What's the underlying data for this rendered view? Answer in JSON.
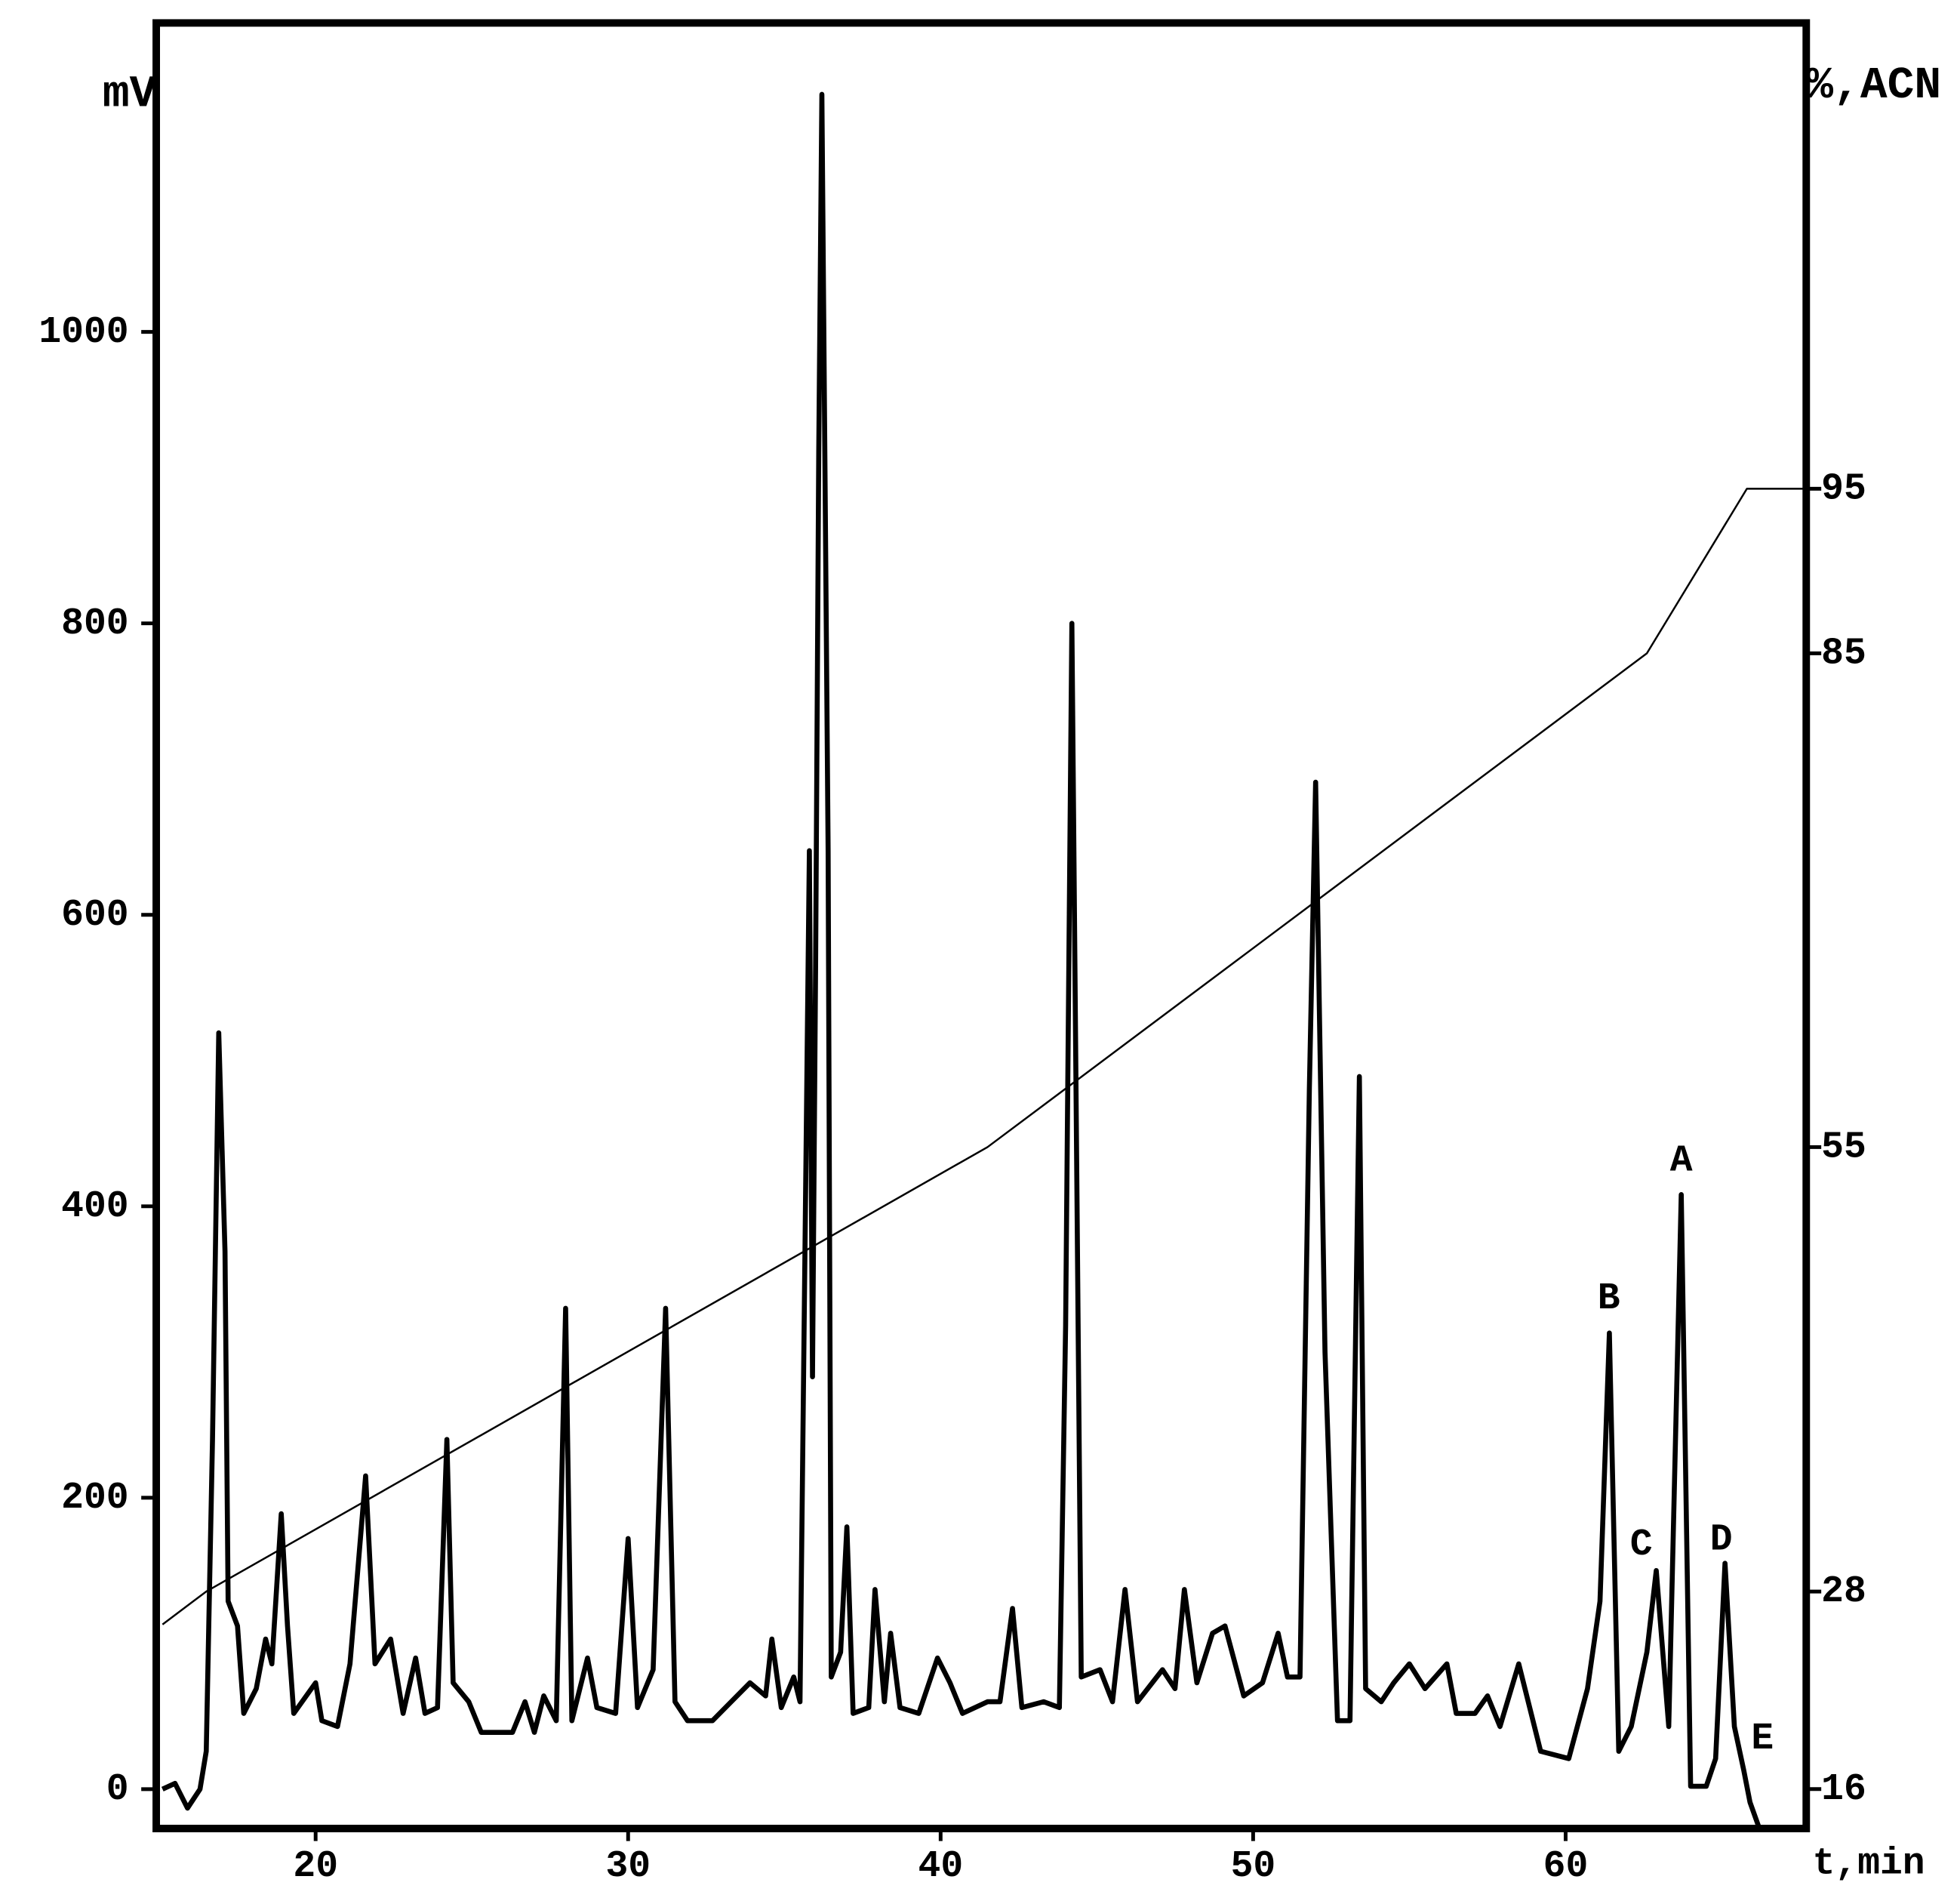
{
  "chart_data": {
    "type": "line",
    "y_label": "mV",
    "y2_label": "%,ACN",
    "x_label": "t,min",
    "xlim": [
      14.9,
      67.7
    ],
    "ylim": [
      -27,
      1212
    ],
    "y2lim": [
      13.6,
      123.3
    ],
    "xticks": [
      20,
      30,
      40,
      50,
      60
    ],
    "yticks": [
      0,
      200,
      400,
      600,
      800,
      1000
    ],
    "y2ticks": [
      16,
      28,
      55,
      85,
      95
    ],
    "annotations": [
      "A",
      "B",
      "C",
      "D",
      "E"
    ],
    "series": [
      {
        "color": "#000000",
        "axis": "y",
        "x": [
          15.1,
          15.5,
          15.9,
          16.3,
          16.5,
          16.7,
          16.9,
          17.1,
          17.2,
          17.5,
          17.7,
          18.1,
          18.4,
          18.6,
          18.9,
          19.1,
          19.3,
          19.7,
          20.0,
          20.2,
          20.7,
          21.1,
          21.6,
          21.9,
          22.4,
          22.8,
          23.2,
          23.5,
          23.9,
          24.2,
          24.4,
          24.9,
          25.3,
          26.3,
          26.7,
          27.0,
          27.3,
          27.7,
          28.0,
          28.2,
          28.7,
          29.0,
          29.6,
          30.0,
          30.3,
          30.8,
          31.2,
          31.5,
          31.9,
          32.7,
          33.3,
          33.9,
          34.4,
          34.6,
          34.9,
          35.3,
          35.5,
          35.8,
          35.9,
          36.0,
          36.1,
          36.2,
          36.4,
          36.5,
          36.8,
          37.0,
          37.2,
          37.7,
          37.9,
          38.2,
          38.4,
          38.7,
          39.3,
          39.9,
          40.3,
          40.7,
          41.5,
          41.9,
          42.3,
          42.6,
          43.3,
          43.8,
          44.0,
          44.2,
          44.5,
          45.1,
          45.5,
          45.9,
          46.3,
          47.1,
          47.5,
          47.8,
          48.2,
          48.7,
          49.1,
          49.7,
          50.3,
          50.8,
          51.1,
          51.5,
          51.8,
          52.0,
          52.3,
          52.7,
          53.1,
          53.4,
          53.6,
          54.1,
          54.5,
          55.0,
          55.5,
          56.2,
          56.5,
          57.1,
          57.5,
          57.9,
          58.5,
          59.2,
          60.1,
          60.7,
          61.1,
          61.4,
          61.7,
          62.1,
          62.6,
          62.9,
          63.3,
          63.7,
          64.0,
          64.5,
          64.8,
          65.1,
          65.4,
          65.7,
          65.9,
          66.2
        ],
        "values": [
          0,
          4,
          -13,
          0,
          26,
          240,
          519,
          369,
          129,
          112,
          52,
          69,
          103,
          86,
          189,
          112,
          52,
          64,
          73,
          47,
          43,
          86,
          215,
          86,
          103,
          52,
          90,
          52,
          56,
          240,
          73,
          60,
          39,
          39,
          60,
          39,
          64,
          47,
          330,
          47,
          90,
          56,
          52,
          172,
          56,
          82,
          330,
          60,
          47,
          47,
          60,
          73,
          64,
          103,
          56,
          77,
          60,
          644,
          283,
          567,
          918,
          1163,
          644,
          77,
          94,
          180,
          52,
          56,
          137,
          60,
          107,
          56,
          52,
          90,
          73,
          52,
          60,
          60,
          124,
          56,
          60,
          56,
          318,
          800,
          77,
          82,
          60,
          137,
          60,
          82,
          69,
          137,
          73,
          107,
          112,
          64,
          73,
          107,
          77,
          77,
          481,
          691,
          300,
          47,
          47,
          489,
          69,
          60,
          73,
          86,
          69,
          86,
          52,
          52,
          64,
          43,
          86,
          26,
          21,
          69,
          129,
          313,
          26,
          43,
          94,
          150,
          43,
          408,
          2,
          2,
          21,
          155,
          43,
          13,
          -9,
          -27
        ]
      },
      {
        "color": "#000000",
        "axis": "y2",
        "x": [
          15.1,
          16.5,
          41.5,
          62.6,
          65.8,
          67.7
        ],
        "values": [
          26,
          28,
          55,
          85,
          95,
          95
        ]
      }
    ]
  }
}
